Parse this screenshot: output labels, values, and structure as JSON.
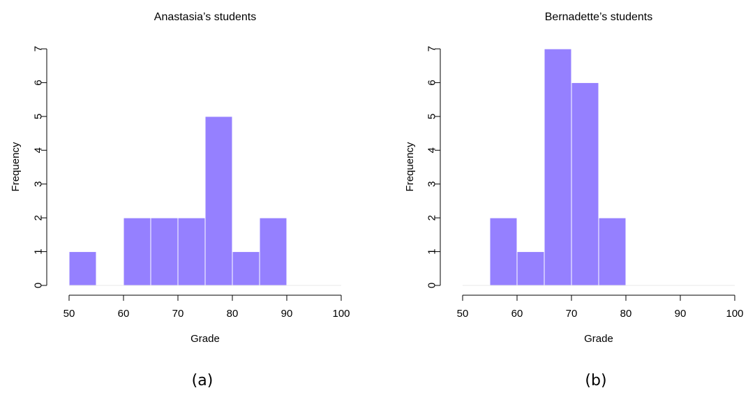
{
  "chart_data": [
    {
      "type": "bar",
      "title": "Anastasia’s students",
      "xlabel": "Grade",
      "ylabel": "Frequency",
      "caption": "(a)",
      "x_ticks": [
        50,
        60,
        70,
        80,
        90,
        100
      ],
      "y_ticks": [
        0,
        1,
        2,
        3,
        4,
        5,
        6,
        7
      ],
      "xlim": [
        50,
        100
      ],
      "ylim": [
        0,
        7
      ],
      "bin_width": 5,
      "bin_starts": [
        50,
        55,
        60,
        65,
        70,
        75,
        80,
        85
      ],
      "values": [
        1,
        0,
        2,
        2,
        2,
        5,
        1,
        2
      ],
      "bar_color": "#9580ff",
      "grid": false
    },
    {
      "type": "bar",
      "title": "Bernadette’s students",
      "xlabel": "Grade",
      "ylabel": "Frequency",
      "caption": "(b)",
      "x_ticks": [
        50,
        60,
        70,
        80,
        90,
        100
      ],
      "y_ticks": [
        0,
        1,
        2,
        3,
        4,
        5,
        6,
        7
      ],
      "xlim": [
        50,
        100
      ],
      "ylim": [
        0,
        7
      ],
      "bin_width": 5,
      "bin_starts": [
        55,
        60,
        65,
        70,
        75
      ],
      "values": [
        2,
        1,
        7,
        6,
        2
      ],
      "bar_color": "#9580ff",
      "grid": false
    }
  ]
}
